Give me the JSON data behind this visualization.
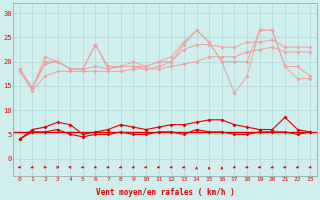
{
  "x": [
    0,
    1,
    2,
    3,
    4,
    5,
    6,
    7,
    8,
    9,
    10,
    11,
    12,
    13,
    14,
    15,
    16,
    17,
    18,
    19,
    20,
    21,
    22,
    23
  ],
  "series_rafales_top": [
    18.5,
    14.5,
    21,
    20,
    18.5,
    18.5,
    23.5,
    19,
    19,
    20,
    19,
    20,
    21,
    24,
    26.5,
    24,
    20,
    20,
    20,
    26.5,
    26.5,
    19,
    19,
    17
  ],
  "series_rafales_mid": [
    18.5,
    14.5,
    20,
    20,
    18.5,
    18.5,
    23.5,
    18.5,
    19,
    19,
    18.5,
    19,
    20,
    23.5,
    26.5,
    24,
    20,
    13.5,
    17,
    26.5,
    26.5,
    19,
    16.5,
    16.5
  ],
  "series_moy_high": [
    18.5,
    14.5,
    19.5,
    20,
    18.5,
    18.5,
    19,
    18.5,
    19,
    19,
    19,
    20,
    20,
    22.5,
    23.5,
    23.5,
    23,
    23,
    24,
    24,
    24.5,
    23,
    23,
    23
  ],
  "series_moy_low": [
    18.0,
    14.0,
    17,
    18,
    18,
    18,
    18,
    18,
    18,
    18.5,
    18.5,
    18.5,
    19,
    19.5,
    20,
    21,
    21,
    21,
    22,
    22.5,
    23,
    22,
    22,
    22
  ],
  "series_vent_moy": [
    4,
    6,
    6.5,
    7.5,
    7,
    5,
    5.5,
    6,
    7,
    6.5,
    6,
    6.5,
    7,
    7,
    7.5,
    8,
    8,
    7,
    6.5,
    6,
    6,
    8.5,
    6,
    5.5
  ],
  "series_vent_min": [
    4,
    5.5,
    5.5,
    6,
    5,
    4.5,
    5,
    5,
    5.5,
    5,
    5,
    5.5,
    5.5,
    5,
    6,
    5.5,
    5.5,
    5,
    5,
    5.5,
    5.5,
    5.5,
    5,
    5.5
  ],
  "series_vent_const": 5.5,
  "color_light": "#f0a0a0",
  "color_dark": "#dd0000",
  "bg_color": "#d0eeee",
  "grid_color": "#b0d8d8",
  "xlabel": "Vent moyen/en rafales ( km/h )",
  "yticks": [
    0,
    5,
    10,
    15,
    20,
    25,
    30
  ],
  "xticks": [
    0,
    1,
    2,
    3,
    4,
    5,
    6,
    7,
    8,
    9,
    10,
    11,
    12,
    13,
    14,
    15,
    16,
    17,
    18,
    19,
    20,
    21,
    22,
    23
  ],
  "ylim": [
    -3.5,
    32
  ],
  "xlim": [
    -0.5,
    23.5
  ],
  "wind_dirs": [
    225,
    225,
    135,
    45,
    315,
    225,
    225,
    225,
    225,
    225,
    225,
    225,
    225,
    225,
    0,
    0,
    0,
    225,
    225,
    225,
    225,
    225,
    225,
    225
  ]
}
